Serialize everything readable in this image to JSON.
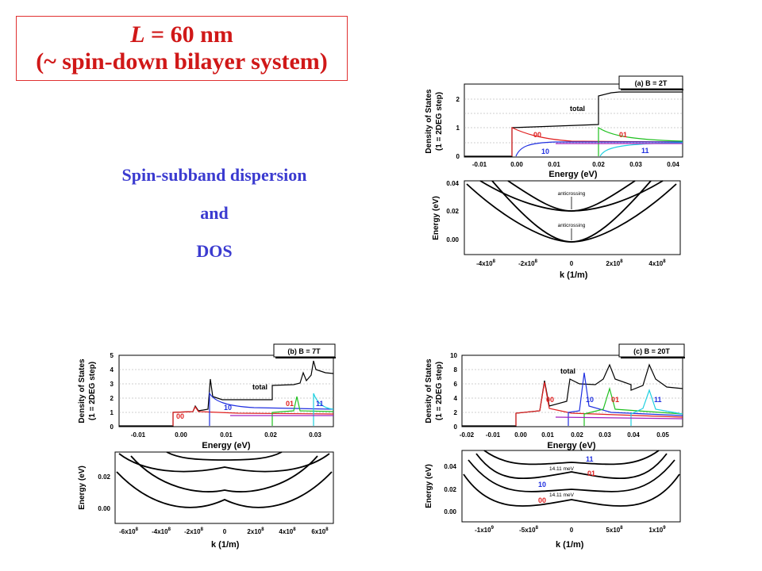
{
  "title": {
    "line1_italic": "L",
    "line1_rest": " = 60 nm",
    "line2": "(~ spin-down bilayer system)"
  },
  "subtitle": {
    "line1": "Spin-subband dispersion",
    "line2": "and",
    "line3": "DOS"
  },
  "panels": {
    "a": {
      "legend": "(a) B = 2T",
      "dos_ylabel1": "Density of States",
      "dos_ylabel2": "(1 = 2DEG step)",
      "dos_xlabel": "Energy (eV)",
      "dos_xticks": [
        "-0.01",
        "0.00",
        "0.01",
        "0.02",
        "0.03",
        "0.04"
      ],
      "dos_yticks": [
        "0",
        "1",
        "2"
      ],
      "total": "total",
      "s00": "00",
      "s01": "01",
      "s10": "10",
      "s11": "11",
      "disp_ylabel": "Energy (eV)",
      "disp_xlabel": "k  (1/m)",
      "disp_xlabel_sub": "x",
      "disp_yticks": [
        "0.00",
        "0.02",
        "0.04"
      ],
      "disp_xticks": [
        "-4x10",
        "-2x10",
        "0",
        "2x10",
        "4x10"
      ],
      "exp": "8",
      "anticross1": "anticrossing",
      "anticross2": "anticrossing"
    },
    "b": {
      "legend": "(b) B = 7T",
      "dos_ylabel1": "Density of States",
      "dos_ylabel2": "(1 = 2DEG step)",
      "dos_xlabel": "Energy (eV)",
      "dos_xticks": [
        "-0.01",
        "0.00",
        "0.01",
        "0.02",
        "0.03"
      ],
      "dos_yticks": [
        "0",
        "1",
        "2",
        "3",
        "4",
        "5"
      ],
      "total": "total",
      "s00": "00",
      "s01": "01",
      "s10": "10",
      "s11": "11",
      "disp_ylabel": "Energy (eV)",
      "disp_xlabel": "k  (1/m)",
      "disp_xlabel_sub": "x",
      "disp_yticks": [
        "0.00",
        "0.02"
      ],
      "disp_xticks": [
        "-6x10",
        "-4x10",
        "-2x10",
        "0",
        "2x10",
        "4x10",
        "6x10"
      ],
      "exp": "8"
    },
    "c": {
      "legend": "(c) B = 20T",
      "dos_ylabel1": "Density of States",
      "dos_ylabel2": "(1 = 2DEG step)",
      "dos_xlabel": "Energy (eV)",
      "dos_xticks": [
        "-0.02",
        "-0.01",
        "0.00",
        "0.01",
        "0.02",
        "0.03",
        "0.04",
        "0.05"
      ],
      "dos_yticks": [
        "0",
        "2",
        "4",
        "6",
        "8",
        "10"
      ],
      "total": "total",
      "s00": "00",
      "s01": "01",
      "s10": "10",
      "s11": "11",
      "disp_ylabel": "Energy (eV)",
      "disp_xlabel": "k  (1/m)",
      "disp_xlabel_sub": "x",
      "disp_yticks": [
        "0.00",
        "0.02",
        "0.04"
      ],
      "disp_xticks": [
        "-1x10",
        "-5x10",
        "0",
        "5x10",
        "1x10"
      ],
      "exp_a": "9",
      "exp_b": "8",
      "gap1": "14.11 meV",
      "gap2": "14.11 meV"
    }
  },
  "colors": {
    "title_red": "#d01818",
    "subtitle_blue": "#3b3bd0",
    "s00": "#e02020",
    "s01": "#20c020",
    "s10": "#2030e0",
    "s11": "#20d0e0",
    "total": "#000000",
    "purple": "#a020c0"
  }
}
